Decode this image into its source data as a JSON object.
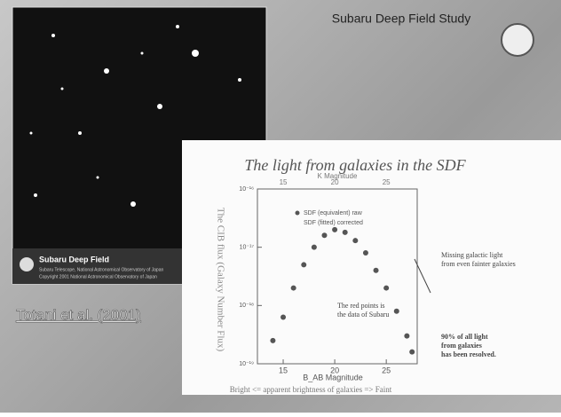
{
  "slide": {
    "title": "Subaru Deep Field Study",
    "citation": "Totani et al. (2001)"
  },
  "photo": {
    "caption_title": "Subaru Deep Field",
    "caption_lines": [
      "Subaru Telescope, National Astronomical Observatory of Japan",
      "Copyright 2001 National Astronomical Observatory of Japan"
    ]
  },
  "figure": {
    "title": "The light from galaxies in the SDF",
    "footer": "Bright <= apparent brightness of galaxies => Faint"
  },
  "chart_data": {
    "type": "scatter",
    "x_label": "B_AB Magnitude",
    "x2_label": "K Magnitude",
    "y_label": "The CIB flux (Galaxy Number Flux)",
    "log_y": true,
    "xlim": [
      12.5,
      28
    ],
    "xticks": [
      15,
      20,
      25
    ],
    "ylim": [
      1e-19,
      1e-16
    ],
    "yticks": [
      {
        "value": 1e-19,
        "label": "10⁻¹⁹"
      },
      {
        "value": 1e-18,
        "label": "10⁻¹⁸"
      },
      {
        "value": 1e-17,
        "label": "10⁻¹⁷"
      },
      {
        "value": 1e-16,
        "label": "10⁻¹⁶"
      }
    ],
    "x": [
      14,
      15,
      16,
      17,
      18,
      19,
      20,
      21,
      22,
      23,
      24,
      25,
      26,
      27,
      27.5
    ],
    "series": [
      {
        "name": "SDF (equivalent) raw",
        "color": "#555555",
        "values": [
          2.5e-19,
          6.3e-19,
          2e-18,
          5e-18,
          1e-17,
          1.6e-17,
          2e-17,
          1.8e-17,
          1.3e-17,
          8e-18,
          4e-18,
          2e-18,
          8e-19,
          3e-19,
          1.6e-19
        ]
      }
    ],
    "legend_extra": "SDF (fitted) corrected",
    "annotations": [
      [
        "Missing galactic light",
        "from even fainter galaxies"
      ],
      [
        "The red points is",
        "the data of Subaru"
      ],
      [
        "90% of all light",
        "from galaxies",
        "has been resolved."
      ]
    ]
  }
}
